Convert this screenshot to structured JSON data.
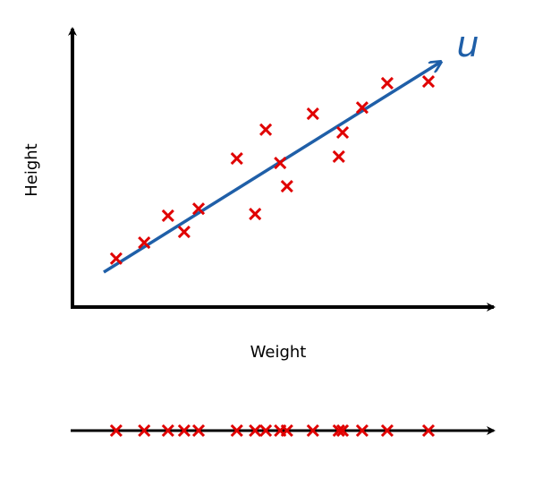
{
  "chart_data": {
    "type": "scatter",
    "xlabel": "Weight",
    "ylabel": "Height",
    "annotation": "u",
    "xlim": [
      0,
      100
    ],
    "ylim": [
      0,
      100
    ],
    "color": "#e00000",
    "x": [
      10.5,
      17.1,
      22.7,
      26.5,
      29.9,
      38.9,
      43.2,
      45.7,
      49.1,
      50.7,
      56.8,
      63.8,
      62.9,
      68.4,
      74.3,
      84.0
    ],
    "y": [
      17.3,
      23.0,
      32.6,
      26.8,
      35.1,
      53.0,
      33.2,
      63.3,
      51.4,
      43.1,
      69.0,
      62.3,
      53.7,
      71.2,
      79.9,
      80.5
    ]
  }
}
